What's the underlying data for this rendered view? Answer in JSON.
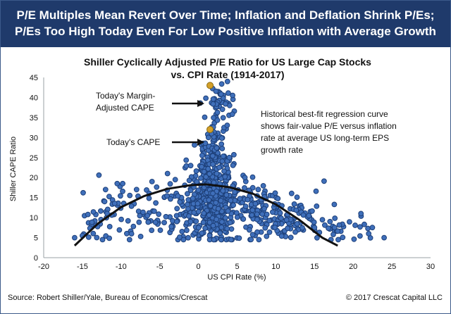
{
  "header": {
    "line1": "P/E Multiples Mean Revert Over Time; Inflation and Deflation Shrink P/Es;",
    "line2": "P/Es Too High Today Even For Low Positive Inflation with Average Growth"
  },
  "footer": {
    "source": "Source: Robert Shiller/Yale, Bureau of Economics/Crescat",
    "copyright": "© 2017 Crescat Capital LLC"
  },
  "colors": {
    "banner": "#1f3a6b",
    "point_fill": "#3f6fba",
    "point_stroke": "#1d3f78",
    "highlight": "#d4a029",
    "curve": "#111111"
  },
  "chart_data": {
    "type": "scatter",
    "title_line1": "Shiller Cyclically Adjusted P/E Ratio for US Large Cap Stocks",
    "title_line2": "vs. CPI Rate (1914-2017)",
    "xlabel": "US CPI Rate (%)",
    "ylabel": "Shiller CAPE Ratio",
    "xlim": [
      -20,
      30
    ],
    "ylim": [
      0,
      45
    ],
    "xticks": [
      -20,
      -15,
      -10,
      -5,
      0,
      5,
      10,
      15,
      20,
      25,
      30
    ],
    "yticks": [
      0,
      5,
      10,
      15,
      20,
      25,
      30,
      35,
      40,
      45
    ],
    "grid": false,
    "highlights": [
      {
        "label": "Today's Margin-Adjusted CAPE",
        "label_line1": "Today's Margin-",
        "label_line2": "Adjusted CAPE",
        "x": 1.5,
        "y": 43.0
      },
      {
        "label": "Today's CAPE",
        "x": 1.5,
        "y": 32.0
      }
    ],
    "annotation_lines": [
      "Historical best-fit regression curve",
      "shows fair-value P/E versus inflation",
      "rate at average US long-term EPS",
      "growth rate"
    ],
    "regression": {
      "description": "quadratic best-fit curve",
      "x_range": [
        -16,
        18
      ],
      "points": [
        [
          -16,
          3
        ],
        [
          -13,
          8.5
        ],
        [
          -10,
          12.6
        ],
        [
          -7,
          15.4
        ],
        [
          -4,
          17.2
        ],
        [
          -1,
          18.1
        ],
        [
          1,
          18.3
        ],
        [
          4,
          17.6
        ],
        [
          7,
          16
        ],
        [
          10,
          13.3
        ],
        [
          13,
          9.5
        ],
        [
          16,
          5
        ],
        [
          18,
          3
        ]
      ]
    },
    "series": [
      {
        "clusters": [
          {
            "cx": 2.0,
            "cy": 15.5,
            "sx": 1.3,
            "sy": 5.5,
            "n": 330
          },
          {
            "cx": 1.5,
            "cy": 9.5,
            "sx": 2.2,
            "sy": 2.8,
            "n": 90
          },
          {
            "cx": 5.5,
            "cy": 13.5,
            "sx": 2.2,
            "sy": 3.5,
            "n": 80
          },
          {
            "cx": 9.5,
            "cy": 10.5,
            "sx": 3.0,
            "sy": 2.8,
            "n": 110
          },
          {
            "cx": 13.5,
            "cy": 9.0,
            "sx": 1.8,
            "sy": 2.2,
            "n": 35
          },
          {
            "cx": -2.5,
            "cy": 12.5,
            "sx": 2.5,
            "sy": 3.5,
            "n": 70
          },
          {
            "cx": -7.5,
            "cy": 10.5,
            "sx": 2.8,
            "sy": 4.0,
            "n": 40
          },
          {
            "cx": -11.5,
            "cy": 11.0,
            "sx": 2.2,
            "sy": 4.0,
            "n": 25
          },
          {
            "cx": -14.0,
            "cy": 6.5,
            "sx": 1.5,
            "sy": 1.5,
            "n": 8
          },
          {
            "cx": 19.5,
            "cy": 7.5,
            "sx": 1.8,
            "sy": 2.2,
            "n": 25
          },
          {
            "cx": 2.0,
            "cy": 27.0,
            "sx": 0.9,
            "sy": 3.5,
            "n": 70
          },
          {
            "cx": 2.5,
            "cy": 38.0,
            "sx": 1.0,
            "sy": 3.8,
            "n": 45
          }
        ],
        "outliers": [
          [
            -16,
            5
          ],
          [
            -15,
            5.5
          ],
          [
            -10.5,
            18.5
          ],
          [
            -12,
            17
          ],
          [
            -6,
            19
          ],
          [
            -4,
            21
          ],
          [
            24,
            5
          ],
          [
            21,
            11
          ],
          [
            22,
            6
          ],
          [
            17,
            9
          ],
          [
            15,
            7.5
          ],
          [
            -8,
            17
          ],
          [
            -3,
            19.5
          ],
          [
            4,
            25
          ],
          [
            6,
            20
          ],
          [
            -1,
            23
          ]
        ]
      }
    ]
  }
}
